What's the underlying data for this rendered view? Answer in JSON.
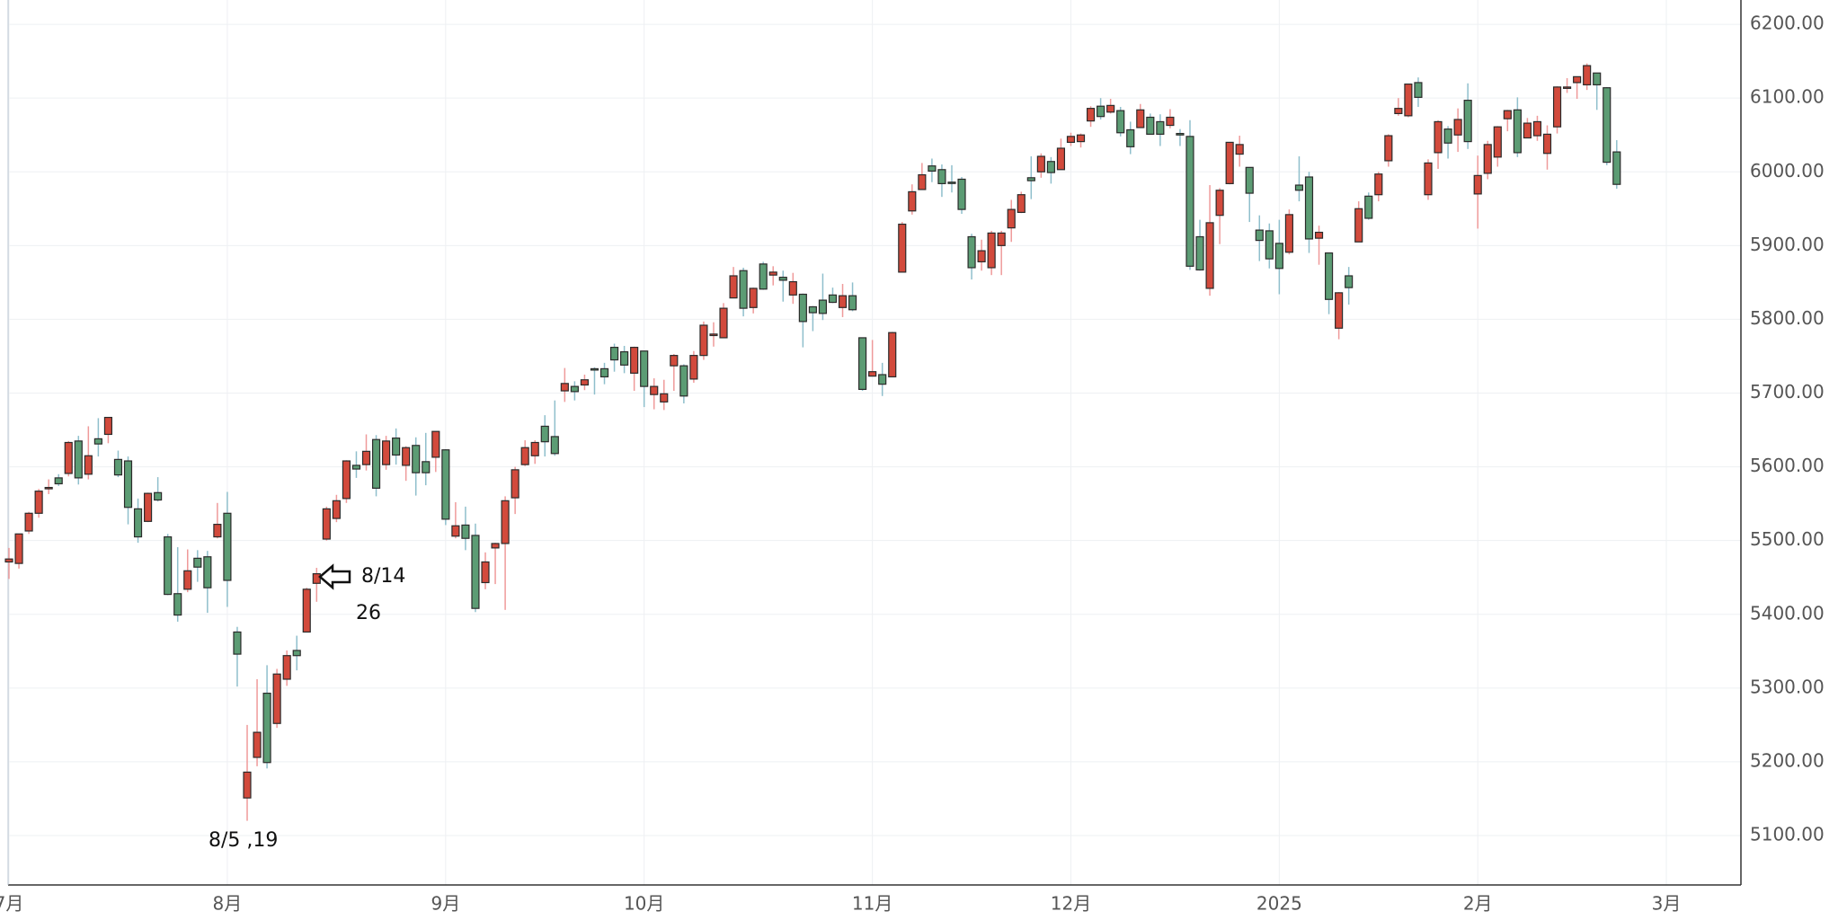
{
  "chart_data": {
    "type": "candlestick",
    "categories": [
      "7月",
      null,
      null,
      null,
      null,
      null,
      null,
      null,
      null,
      null,
      null,
      null,
      null,
      null,
      null,
      null,
      null,
      null,
      null,
      null,
      null,
      null,
      "8月",
      null,
      null,
      null,
      null,
      null,
      null,
      null,
      null,
      null,
      null,
      null,
      null,
      null,
      null,
      null,
      null,
      null,
      null,
      null,
      null,
      null,
      "9月",
      null,
      null,
      null,
      null,
      null,
      null,
      null,
      null,
      null,
      null,
      null,
      null,
      null,
      null,
      null,
      null,
      null,
      null,
      null,
      "10月",
      null,
      null,
      null,
      null,
      null,
      null,
      null,
      null,
      null,
      null,
      null,
      null,
      null,
      null,
      null,
      null,
      null,
      null,
      null,
      null,
      null,
      null,
      "11月",
      null,
      null,
      null,
      null,
      null,
      null,
      null,
      null,
      null,
      null,
      null,
      null,
      null,
      null,
      null,
      null,
      null,
      null,
      null,
      "12月",
      null,
      null,
      null,
      null,
      null,
      null,
      null,
      null,
      null,
      null,
      null,
      null,
      null,
      null,
      null,
      null,
      null,
      null,
      null,
      null,
      "2025",
      null,
      null,
      null,
      null,
      null,
      null,
      null,
      null,
      null,
      null,
      null,
      null,
      null,
      null,
      null,
      null,
      null,
      null,
      null,
      "2月",
      null,
      null,
      null,
      null,
      null,
      null,
      null,
      null,
      null,
      null,
      null,
      null,
      null,
      null,
      null,
      null,
      null,
      null,
      "3月"
    ],
    "open": [
      5471,
      5469,
      5513,
      5537,
      5572,
      5585,
      5591,
      5635,
      5590,
      5638,
      5644,
      5610,
      5608,
      5543,
      5526,
      5565,
      5505,
      5428,
      5434,
      5476,
      5478,
      5505,
      5537,
      5376,
      5151,
      5206,
      5293,
      5252,
      5312,
      5351,
      5376,
      5442,
      5502,
      5530,
      5557,
      5602,
      5603,
      5637,
      5603,
      5639,
      5602,
      5629,
      5607,
      5613,
      5623,
      5506,
      5521,
      5507,
      5443,
      5490,
      5496,
      5558,
      5603,
      5615,
      5655,
      5641,
      5703,
      5709,
      5711,
      5733,
      5733,
      5762,
      5756,
      5727,
      5757,
      5698,
      5688,
      5737,
      5737,
      5719,
      5751,
      5778,
      5775,
      5829,
      5866,
      5816,
      5875,
      5860,
      5857,
      5833,
      5834,
      5817,
      5826,
      5833,
      5816,
      5832,
      5775,
      5723,
      5725,
      5722,
      5864,
      5947,
      5976,
      6008,
      6003,
      5986,
      5990,
      5912,
      5878,
      5870,
      5900,
      5924,
      5945,
      5992,
      6000,
      6014,
      6003,
      6040,
      6041,
      6069,
      6089,
      6081,
      6083,
      6057,
      6060,
      6074,
      6068,
      6063,
      6052,
      6048,
      5912,
      5842,
      5941,
      5984,
      6024,
      6006,
      5921,
      5920,
      5903,
      5891,
      5982,
      5993,
      5910,
      5890,
      5788,
      5859,
      5905,
      5967,
      5969,
      6015,
      6079,
      6076,
      6121,
      5969,
      6026,
      6058,
      6050,
      6097,
      5970,
      5998,
      6020,
      6072,
      6084,
      6046,
      6049,
      6025,
      6061,
      6115,
      6121,
      6118,
      6134,
      6114,
      6027,
      null,
      null,
      null,
      null,
      null
    ],
    "high": [
      5490,
      5509,
      5539,
      5570,
      5583,
      5590,
      5635,
      5642,
      5655,
      5666,
      5667,
      5622,
      5614,
      5557,
      5565,
      5586,
      5509,
      5491,
      5488,
      5487,
      5486,
      5551,
      5566,
      5383,
      5250,
      5312,
      5331,
      5326,
      5351,
      5371,
      5436,
      5463,
      5546,
      5562,
      5609,
      5621,
      5644,
      5643,
      5642,
      5652,
      5628,
      5640,
      5646,
      5648,
      5624,
      5552,
      5546,
      5523,
      5484,
      5497,
      5560,
      5600,
      5636,
      5636,
      5670,
      5690,
      5734,
      5716,
      5725,
      5735,
      5741,
      5767,
      5764,
      5763,
      5757,
      5720,
      5718,
      5753,
      5739,
      5757,
      5797,
      5796,
      5822,
      5871,
      5870,
      5843,
      5878,
      5872,
      5866,
      5863,
      5835,
      5818,
      5862,
      5843,
      5848,
      5850,
      5775,
      5772,
      5741,
      5783,
      5932,
      5983,
      6012,
      6018,
      6010,
      6009,
      5993,
      5916,
      5908,
      5920,
      5920,
      5962,
      5973,
      6021,
      6025,
      6020,
      6045,
      6053,
      6052,
      6089,
      6100,
      6099,
      6088,
      6068,
      6092,
      6079,
      6078,
      6085,
      6058,
      6070,
      5935,
      5982,
      5978,
      6040,
      6049,
      6006,
      5941,
      5930,
      5935,
      5949,
      6021,
      6000,
      5927,
      5890,
      5837,
      5871,
      5960,
      5972,
      6000,
      6051,
      6100,
      6119,
      6128,
      6017,
      6070,
      6062,
      6086,
      6120,
      6022,
      6042,
      6062,
      6084,
      6101,
      6073,
      6076,
      6063,
      6116,
      6127,
      6129,
      6147,
      6134,
      6115,
      6043,
      null,
      null,
      null,
      null,
      null
    ],
    "low": [
      5448,
      5462,
      5509,
      5531,
      5563,
      5574,
      5587,
      5576,
      5583,
      5614,
      5632,
      5586,
      5522,
      5497,
      5525,
      5553,
      5426,
      5390,
      5430,
      5444,
      5402,
      5503,
      5410,
      5302,
      5120,
      5194,
      5191,
      5246,
      5303,
      5324,
      5376,
      5417,
      5500,
      5525,
      5551,
      5585,
      5595,
      5560,
      5596,
      5603,
      5581,
      5561,
      5575,
      5593,
      5521,
      5503,
      5487,
      5403,
      5434,
      5441,
      5406,
      5536,
      5601,
      5604,
      5614,
      5615,
      5688,
      5690,
      5704,
      5698,
      5712,
      5729,
      5727,
      5703,
      5681,
      5678,
      5677,
      5703,
      5686,
      5714,
      5745,
      5763,
      5775,
      5829,
      5804,
      5808,
      5840,
      5846,
      5824,
      5821,
      5762,
      5784,
      5799,
      5822,
      5803,
      5811,
      5703,
      5723,
      5696,
      5722,
      5864,
      5942,
      5976,
      5986,
      5966,
      5972,
      5943,
      5854,
      5866,
      5860,
      5860,
      5905,
      5944,
      5963,
      5992,
      5984,
      6003,
      6035,
      6033,
      6061,
      6071,
      6079,
      6048,
      6024,
      6060,
      6051,
      6035,
      6059,
      6035,
      5867,
      5866,
      5832,
      5902,
      5983,
      6007,
      5932,
      5879,
      5869,
      5834,
      5888,
      5960,
      5890,
      5874,
      5807,
      5773,
      5820,
      5905,
      5935,
      5960,
      6007,
      6076,
      6074,
      6088,
      5962,
      6004,
      6018,
      6027,
      6031,
      5923,
      5990,
      6007,
      6055,
      6020,
      6046,
      6042,
      6003,
      6052,
      6107,
      6099,
      6111,
      6084,
      6009,
      5977,
      null,
      null,
      null,
      null,
      null
    ],
    "close": [
      5475,
      5509,
      5537,
      5567,
      5572,
      5577,
      5633,
      5585,
      5615,
      5631,
      5667,
      5589,
      5545,
      5505,
      5564,
      5555,
      5427,
      5399,
      5459,
      5464,
      5436,
      5522,
      5446,
      5346,
      5186,
      5240,
      5199,
      5319,
      5344,
      5344,
      5434,
      5455,
      5543,
      5554,
      5608,
      5597,
      5621,
      5571,
      5635,
      5616,
      5626,
      5592,
      5592,
      5648,
      5529,
      5520,
      5503,
      5408,
      5471,
      5496,
      5554,
      5596,
      5626,
      5633,
      5634,
      5618,
      5713,
      5702,
      5718,
      5732,
      5722,
      5745,
      5738,
      5762,
      5709,
      5709,
      5699,
      5751,
      5696,
      5751,
      5792,
      5780,
      5815,
      5859,
      5815,
      5842,
      5841,
      5864,
      5853,
      5851,
      5797,
      5809,
      5808,
      5823,
      5832,
      5813,
      5705,
      5729,
      5712,
      5782,
      5929,
      5973,
      5996,
      6001,
      5984,
      5985,
      5949,
      5870,
      5893,
      5917,
      5917,
      5949,
      5969,
      5988,
      6021,
      5999,
      6032,
      6048,
      6050,
      6086,
      6075,
      6090,
      6053,
      6034,
      6084,
      6051,
      6051,
      6074,
      6050,
      5872,
      5867,
      5931,
      5975,
      6040,
      6037,
      5971,
      5907,
      5882,
      5869,
      5942,
      5975,
      5909,
      5918,
      5827,
      5836,
      5843,
      5950,
      5937,
      5997,
      6049,
      6086,
      6119,
      6101,
      6012,
      6068,
      6039,
      6071,
      6041,
      5995,
      6037,
      6061,
      6083,
      6026,
      6066,
      6068,
      6051,
      6115,
      6115,
      6129,
      6144,
      6118,
      6013,
      5983,
      null,
      null,
      null,
      null,
      null
    ],
    "up_color": "#d24a3c",
    "down_color": "#5c9c74",
    "ylim": [
      5033,
      6233
    ],
    "yticks": [
      {
        "value": 5100,
        "label": "5100.00"
      },
      {
        "value": 5200,
        "label": "5200.00"
      },
      {
        "value": 5300,
        "label": "5300.00"
      },
      {
        "value": 5400,
        "label": "5400.00"
      },
      {
        "value": 5500,
        "label": "5500.00"
      },
      {
        "value": 5600,
        "label": "5600.00"
      },
      {
        "value": 5700,
        "label": "5700.00"
      },
      {
        "value": 5800,
        "label": "5800.00"
      },
      {
        "value": 5900,
        "label": "5900.00"
      },
      {
        "value": 6000,
        "label": "6000.00"
      },
      {
        "value": 6100,
        "label": "6100.00"
      },
      {
        "value": 6200,
        "label": "6200.00"
      }
    ],
    "grid": true,
    "annotations": [
      {
        "text": "8/14"
      },
      {
        "text": "26"
      },
      {
        "text": "8/5 ,19"
      }
    ]
  }
}
